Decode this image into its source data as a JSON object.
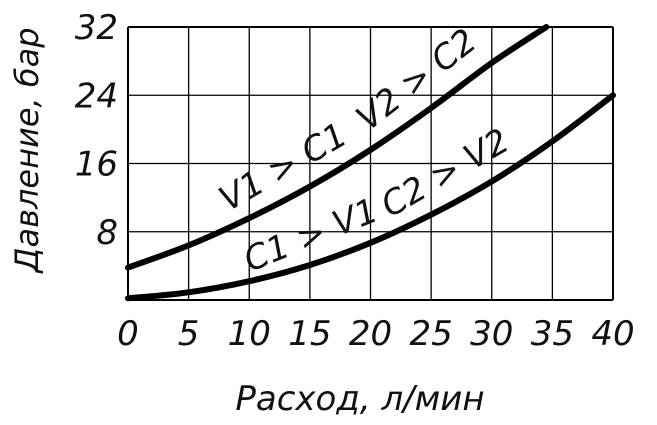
{
  "chart_data": {
    "type": "line",
    "xlabel": "Расход, л/мин",
    "ylabel": "Давление, бар",
    "xlim": [
      0,
      40
    ],
    "ylim": [
      0,
      32
    ],
    "x_ticks": [
      "0",
      "5",
      "10",
      "15",
      "20",
      "25",
      "30",
      "35",
      "40"
    ],
    "y_ticks": [
      "8",
      "16",
      "24",
      "32"
    ],
    "grid": true,
    "legend": "none",
    "colors": {
      "line": "#000000",
      "grid": "#000000",
      "text": "#111111"
    },
    "series": [
      {
        "label_parts": [
          "V1 > C1",
          "V2 > C2"
        ],
        "x": [
          0,
          5,
          10,
          15,
          20,
          25,
          30,
          34.5
        ],
        "y": [
          3.8,
          6.4,
          9.6,
          13.3,
          17.6,
          22.5,
          27.8,
          32.0
        ]
      },
      {
        "label_parts": [
          "C1 > V1",
          "C2 > V2"
        ],
        "x": [
          0,
          5,
          10,
          15,
          20,
          25,
          30,
          35,
          40
        ],
        "y": [
          0.2,
          0.9,
          2.2,
          4.1,
          6.7,
          10.0,
          13.9,
          18.6,
          24.0
        ]
      }
    ]
  }
}
